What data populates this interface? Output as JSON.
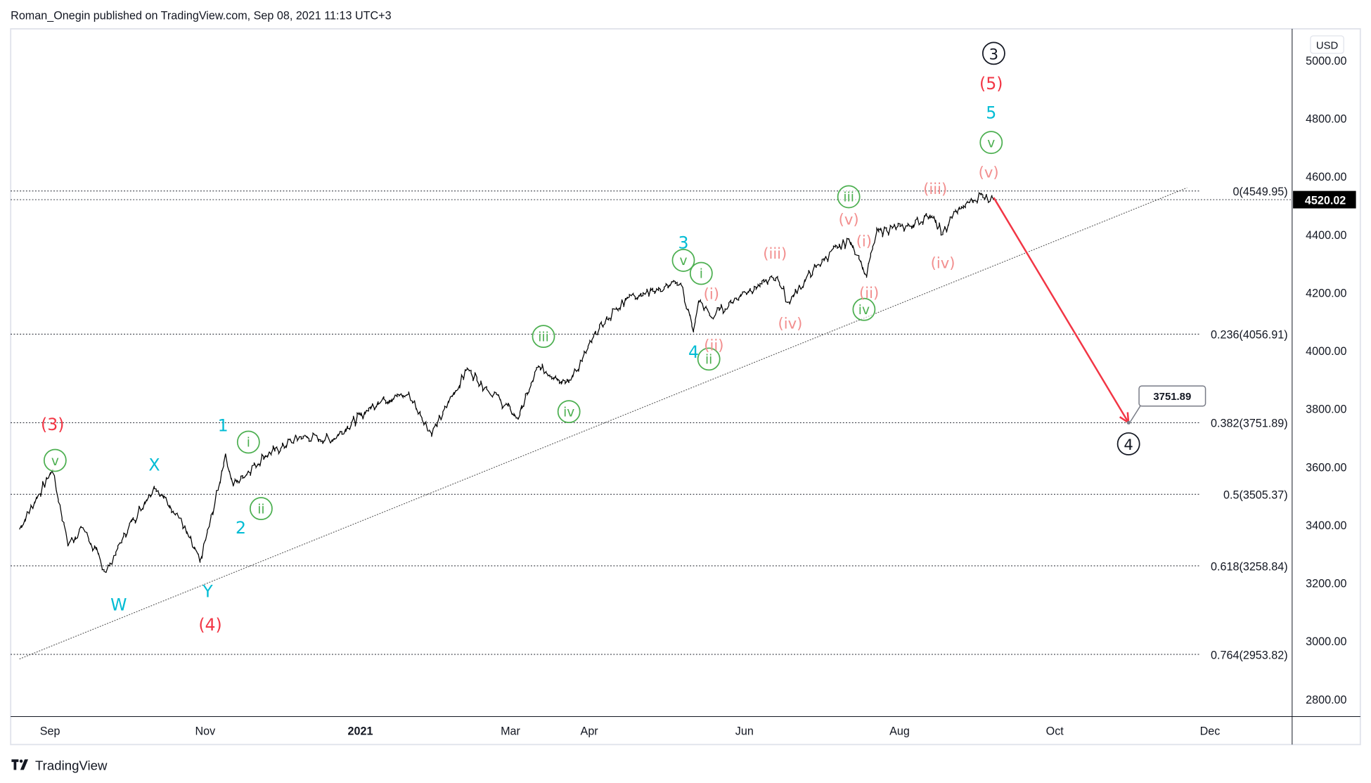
{
  "header": {
    "text": "Roman_Onegin published on TradingView.com, Sep 08, 2021 11:13 UTC+3"
  },
  "footer": {
    "logo_text": "TradingView"
  },
  "colors": {
    "black": "#131722",
    "red": "#f23645",
    "cyan": "#00bcd4",
    "green": "#4caf50",
    "pink": "#f28e8e",
    "arrow": "#f23645",
    "price_line": "#131722"
  },
  "chart_data": {
    "type": "line",
    "currency": "USD",
    "last_price": "4520.02",
    "x_ticks": [
      {
        "label": "Sep",
        "date": "2020-09-01"
      },
      {
        "label": "Nov",
        "date": "2020-11-01"
      },
      {
        "label": "2021",
        "date": "2021-01-01"
      },
      {
        "label": "Mar",
        "date": "2021-03-01"
      },
      {
        "label": "Apr",
        "date": "2021-04-01"
      },
      {
        "label": "Jun",
        "date": "2021-06-01"
      },
      {
        "label": "Aug",
        "date": "2021-08-01"
      },
      {
        "label": "Oct",
        "date": "2021-10-01"
      },
      {
        "label": "Dec",
        "date": "2021-12-01"
      }
    ],
    "y_ticks": [
      "5000.00",
      "4800.00",
      "4600.00",
      "4400.00",
      "4200.00",
      "4000.00",
      "3800.00",
      "3600.00",
      "3400.00",
      "3200.00",
      "3000.00",
      "2800.00"
    ],
    "ylim": [
      2760,
      5100
    ],
    "series": [
      {
        "points": [
          [
            "2020-08-20",
            3385
          ],
          [
            "2020-08-26",
            3480
          ],
          [
            "2020-09-02",
            3588
          ],
          [
            "2020-09-08",
            3332
          ],
          [
            "2020-09-14",
            3390
          ],
          [
            "2020-09-23",
            3237
          ],
          [
            "2020-09-30",
            3363
          ],
          [
            "2020-10-12",
            3534
          ],
          [
            "2020-10-21",
            3440
          ],
          [
            "2020-10-30",
            3270
          ],
          [
            "2020-11-04",
            3443
          ],
          [
            "2020-11-09",
            3645
          ],
          [
            "2020-11-12",
            3537
          ],
          [
            "2020-11-24",
            3635
          ],
          [
            "2020-12-08",
            3702
          ],
          [
            "2020-12-21",
            3694
          ],
          [
            "2021-01-08",
            3825
          ],
          [
            "2021-01-20",
            3851
          ],
          [
            "2021-01-29",
            3714
          ],
          [
            "2021-02-12",
            3935
          ],
          [
            "2021-02-25",
            3829
          ],
          [
            "2021-03-04",
            3768
          ],
          [
            "2021-03-12",
            3943
          ],
          [
            "2021-03-24",
            3889
          ],
          [
            "2021-04-05",
            4078
          ],
          [
            "2021-04-16",
            4185
          ],
          [
            "2021-04-29",
            4211
          ],
          [
            "2021-05-07",
            4232
          ],
          [
            "2021-05-12",
            4063
          ],
          [
            "2021-05-14",
            4173
          ],
          [
            "2021-05-19",
            4115
          ],
          [
            "2021-06-01",
            4202
          ],
          [
            "2021-06-14",
            4255
          ],
          [
            "2021-06-18",
            4166
          ],
          [
            "2021-06-30",
            4297
          ],
          [
            "2021-07-12",
            4384
          ],
          [
            "2021-07-16",
            4327
          ],
          [
            "2021-07-19",
            4258
          ],
          [
            "2021-07-23",
            4411
          ],
          [
            "2021-08-05",
            4429
          ],
          [
            "2021-08-13",
            4468
          ],
          [
            "2021-08-18",
            4400
          ],
          [
            "2021-08-23",
            4479
          ],
          [
            "2021-09-02",
            4537
          ],
          [
            "2021-09-07",
            4520
          ]
        ]
      }
    ],
    "fib_levels": [
      {
        "label": "0(4549.95)",
        "price": 4549.95
      },
      {
        "label": "0.236(4056.91)",
        "price": 4056.91
      },
      {
        "label": "0.382(3751.89)",
        "price": 3751.89
      },
      {
        "label": "0.5(3505.37)",
        "price": 3505.37
      },
      {
        "label": "0.618(3258.84)",
        "price": 3258.84
      },
      {
        "label": "0.764(2953.82)",
        "price": 2953.82
      }
    ],
    "trendline": {
      "from": [
        "2020-08-20",
        2938
      ],
      "to": [
        "2021-11-22",
        4561
      ]
    },
    "projection_arrow": {
      "from": [
        "2021-09-07",
        4527
      ],
      "to": [
        "2021-10-30",
        3751.89
      ],
      "target_label": "3751.89"
    },
    "wave_labels": [
      {
        "text": "3",
        "style": "circle",
        "color": "black",
        "date": "2021-09-07",
        "price": 5024
      },
      {
        "text": "4",
        "style": "circle",
        "color": "black",
        "date": "2021-10-30",
        "price": 3679
      },
      {
        "text": "(5)",
        "style": "plain",
        "color": "red",
        "date": "2021-09-06",
        "price": 4919
      },
      {
        "text": "(3)",
        "style": "plain",
        "color": "red",
        "date": "2020-09-02",
        "price": 3745
      },
      {
        "text": "(4)",
        "style": "plain",
        "color": "red",
        "date": "2020-11-03",
        "price": 3056
      },
      {
        "text": "5",
        "style": "plain",
        "color": "cyan",
        "date": "2021-09-06",
        "price": 4819
      },
      {
        "text": "1",
        "style": "plain",
        "color": "cyan",
        "date": "2020-11-08",
        "price": 3742
      },
      {
        "text": "2",
        "style": "plain",
        "color": "cyan",
        "date": "2020-11-15",
        "price": 3390
      },
      {
        "text": "3",
        "style": "plain",
        "color": "cyan",
        "date": "2021-05-08",
        "price": 4371
      },
      {
        "text": "4",
        "style": "plain",
        "color": "cyan",
        "date": "2021-05-12",
        "price": 3995
      },
      {
        "text": "W",
        "style": "plain",
        "color": "cyan",
        "date": "2020-09-28",
        "price": 3125
      },
      {
        "text": "X",
        "style": "plain",
        "color": "cyan",
        "date": "2020-10-12",
        "price": 3606
      },
      {
        "text": "Y",
        "style": "plain",
        "color": "cyan",
        "date": "2020-11-02",
        "price": 3170
      },
      {
        "text": "v",
        "style": "circle",
        "color": "green",
        "date": "2020-09-03",
        "price": 3622
      },
      {
        "text": "i",
        "style": "circle",
        "color": "green",
        "date": "2020-11-18",
        "price": 3685
      },
      {
        "text": "ii",
        "style": "circle",
        "color": "green",
        "date": "2020-11-23",
        "price": 3456
      },
      {
        "text": "iii",
        "style": "circle",
        "color": "green",
        "date": "2021-03-14",
        "price": 4049
      },
      {
        "text": "iv",
        "style": "circle",
        "color": "green",
        "date": "2021-03-24",
        "price": 3790
      },
      {
        "text": "v",
        "style": "circle",
        "color": "green",
        "date": "2021-05-08",
        "price": 4311
      },
      {
        "text": "i",
        "style": "circle",
        "color": "green",
        "date": "2021-05-15",
        "price": 4266
      },
      {
        "text": "ii",
        "style": "circle",
        "color": "green",
        "date": "2021-05-18",
        "price": 3971
      },
      {
        "text": "iii",
        "style": "circle",
        "color": "green",
        "date": "2021-07-12",
        "price": 4530
      },
      {
        "text": "iv",
        "style": "circle",
        "color": "green",
        "date": "2021-07-18",
        "price": 4142
      },
      {
        "text": "v",
        "style": "circle",
        "color": "green",
        "date": "2021-09-06",
        "price": 4717
      },
      {
        "text": "(i)",
        "style": "plain",
        "color": "pink",
        "date": "2021-05-19",
        "price": 4196
      },
      {
        "text": "(ii)",
        "style": "plain",
        "color": "pink",
        "date": "2021-05-20",
        "price": 4019
      },
      {
        "text": "(iii)",
        "style": "plain",
        "color": "pink",
        "date": "2021-06-13",
        "price": 4335
      },
      {
        "text": "(iv)",
        "style": "plain",
        "color": "pink",
        "date": "2021-06-19",
        "price": 4094
      },
      {
        "text": "(v)",
        "style": "plain",
        "color": "pink",
        "date": "2021-07-12",
        "price": 4452
      },
      {
        "text": "(i)",
        "style": "plain",
        "color": "pink",
        "date": "2021-07-18",
        "price": 4377
      },
      {
        "text": "(ii)",
        "style": "plain",
        "color": "pink",
        "date": "2021-07-20",
        "price": 4199
      },
      {
        "text": "(iii)",
        "style": "plain",
        "color": "pink",
        "date": "2021-08-15",
        "price": 4558
      },
      {
        "text": "(iv)",
        "style": "plain",
        "color": "pink",
        "date": "2021-08-18",
        "price": 4302
      },
      {
        "text": "(v)",
        "style": "plain",
        "color": "pink",
        "date": "2021-09-05",
        "price": 4615
      }
    ]
  }
}
